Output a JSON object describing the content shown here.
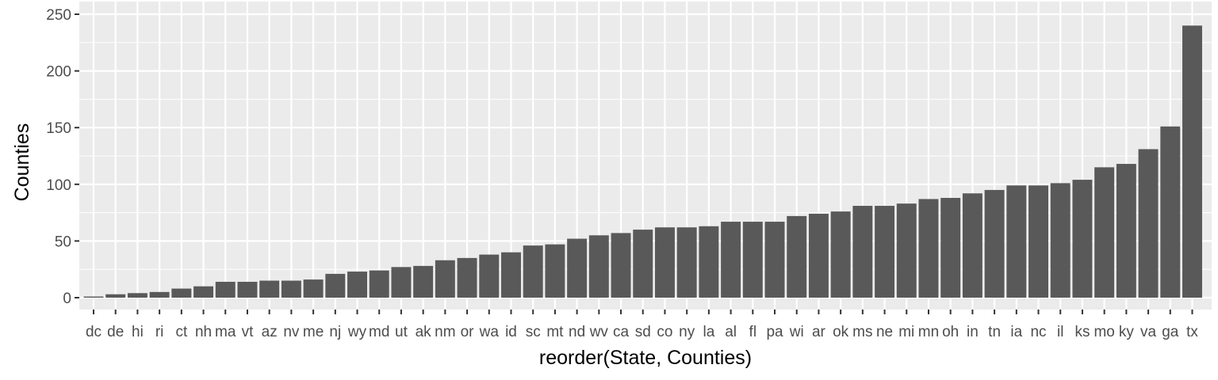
{
  "chart_data": {
    "type": "bar",
    "xlabel": "reorder(State, Counties)",
    "ylabel": "Counties",
    "ylim": [
      0,
      250
    ],
    "yticks": [
      0,
      50,
      100,
      150,
      200,
      250
    ],
    "grid": true,
    "colors": {
      "panel": "#ebebeb",
      "grid": "#ffffff",
      "bar": "#595959",
      "tick_text": "#4d4d4d"
    },
    "categories": [
      "dc",
      "de",
      "hi",
      "ri",
      "ct",
      "nh",
      "ma",
      "vt",
      "az",
      "nv",
      "me",
      "nj",
      "wy",
      "md",
      "ut",
      "ak",
      "nm",
      "or",
      "wa",
      "id",
      "sc",
      "mt",
      "nd",
      "wv",
      "ca",
      "sd",
      "co",
      "ny",
      "la",
      "al",
      "fl",
      "pa",
      "wi",
      "ar",
      "ok",
      "ms",
      "ne",
      "mi",
      "mn",
      "oh",
      "in",
      "tn",
      "ia",
      "nc",
      "il",
      "ks",
      "mo",
      "ky",
      "va",
      "ga",
      "tx"
    ],
    "values": [
      1,
      3,
      4,
      5,
      8,
      10,
      14,
      14,
      15,
      15,
      16,
      21,
      23,
      24,
      27,
      28,
      33,
      35,
      38,
      40,
      46,
      47,
      52,
      55,
      57,
      60,
      62,
      62,
      63,
      67,
      67,
      67,
      72,
      74,
      76,
      81,
      81,
      83,
      87,
      88,
      92,
      95,
      99,
      99,
      101,
      104,
      115,
      118,
      131,
      151,
      240
    ]
  }
}
